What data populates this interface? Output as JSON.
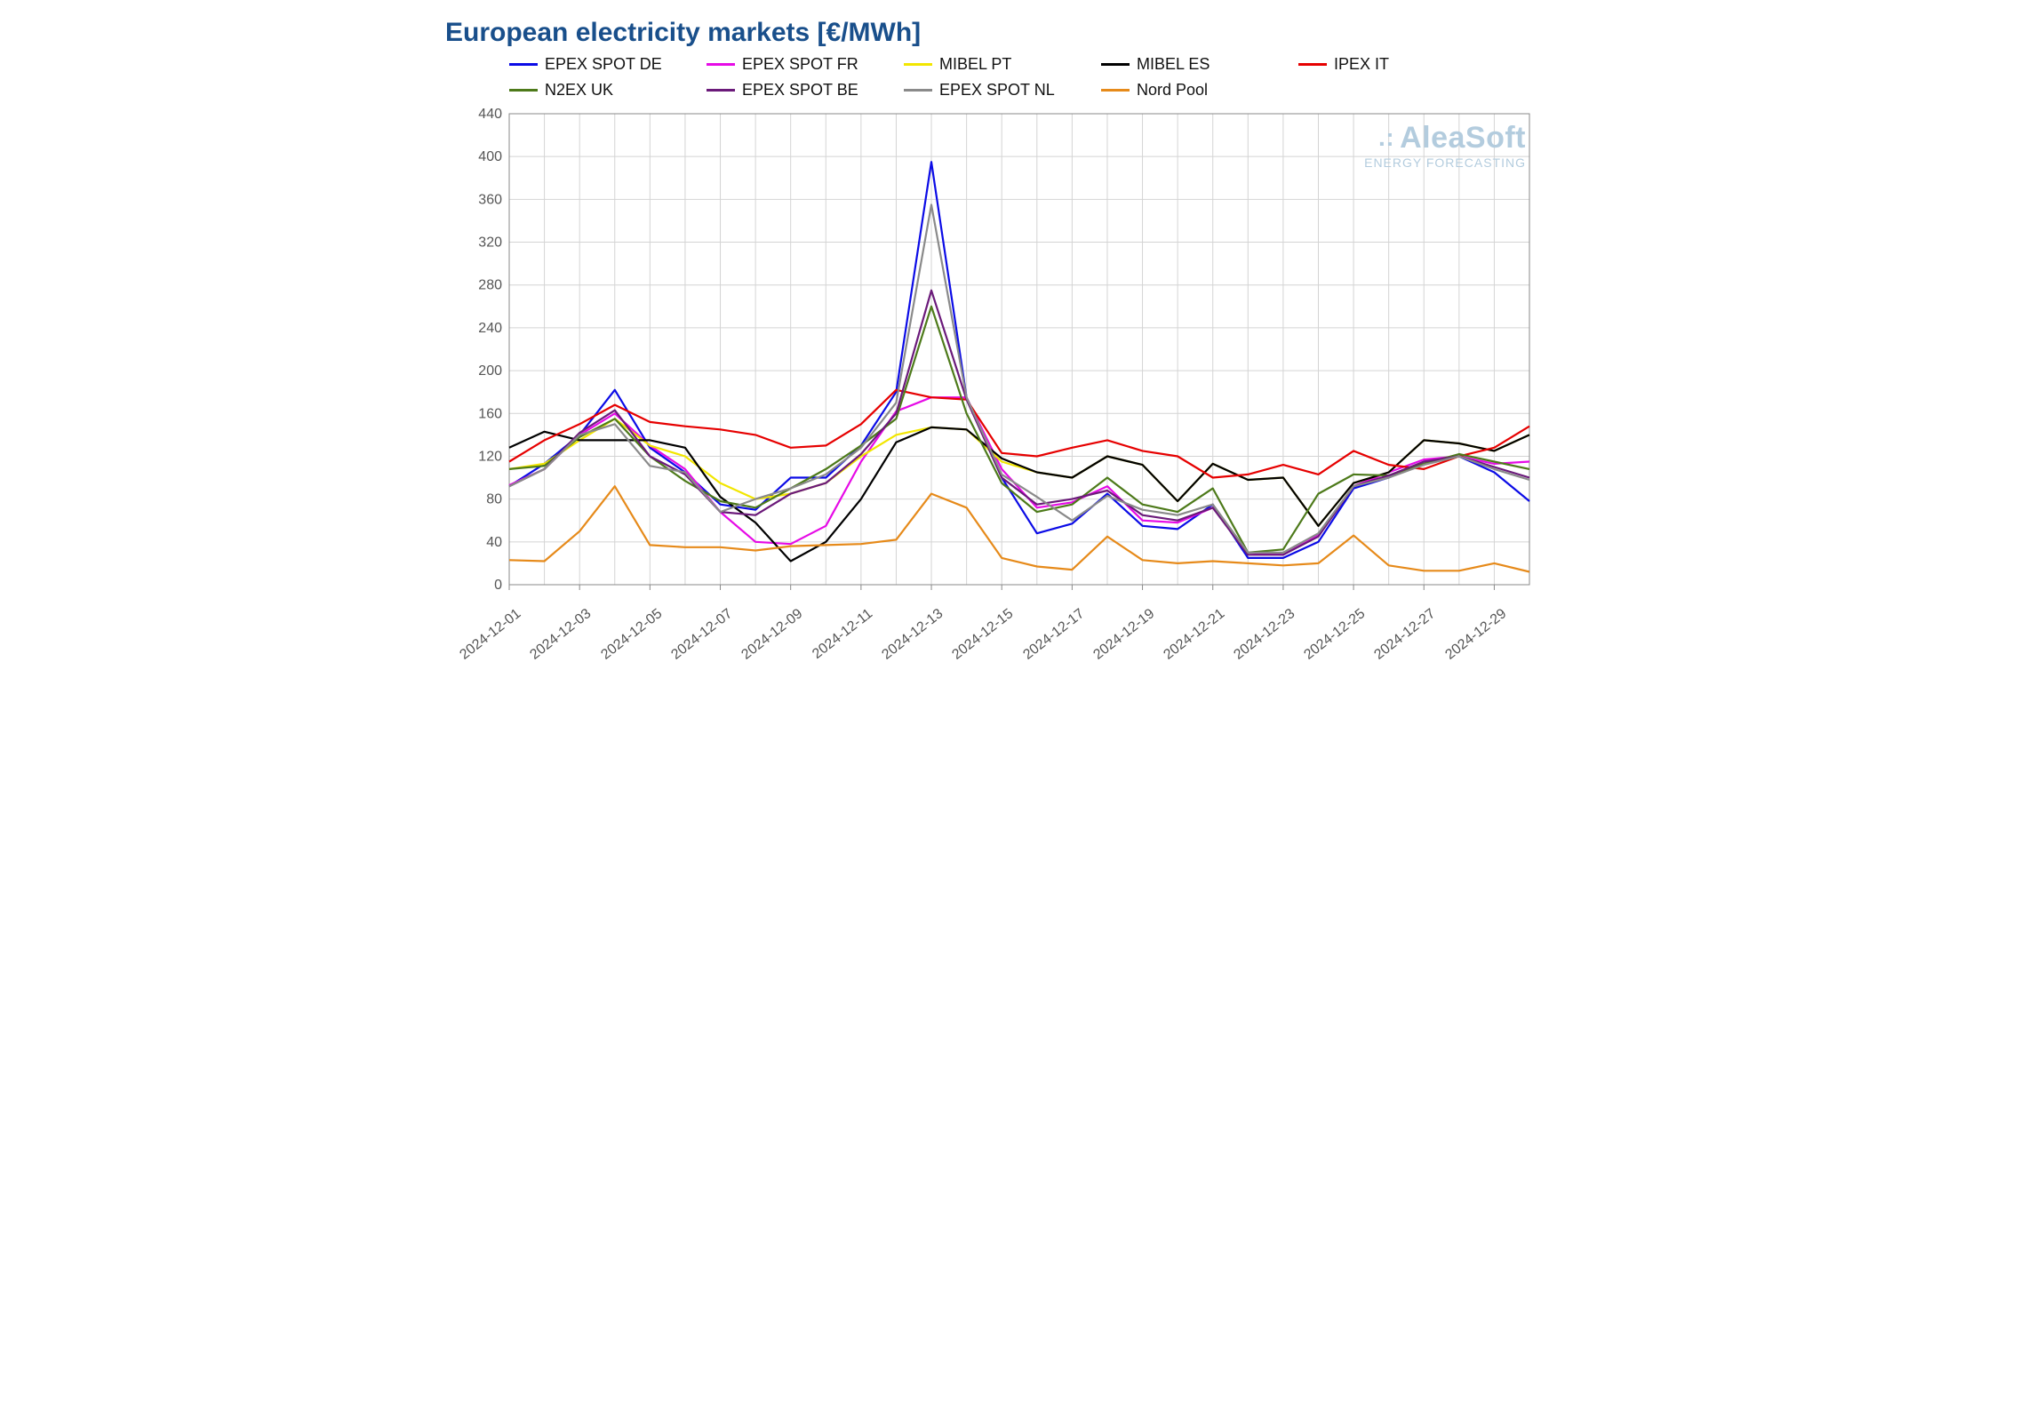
{
  "title": "European electricity markets [€/MWh]",
  "watermark": {
    "main": "AleaSoft",
    "sub": "ENERGY FORECASTING"
  },
  "chart": {
    "type": "line",
    "background_color": "#ffffff",
    "grid_color": "#d4d4d4",
    "axis_color": "#8a8a8a",
    "title_fontsize": 30,
    "title_color": "#194f8b",
    "legend_fontsize": 18,
    "axis_label_fontsize": 16,
    "line_width": 2.2,
    "ylim": [
      0,
      440
    ],
    "ytick_step": 40,
    "yticks": [
      0,
      40,
      80,
      120,
      160,
      200,
      240,
      280,
      320,
      360,
      400,
      440
    ],
    "x_dates": [
      "2024-12-01",
      "2024-12-02",
      "2024-12-03",
      "2024-12-04",
      "2024-12-05",
      "2024-12-06",
      "2024-12-07",
      "2024-12-08",
      "2024-12-09",
      "2024-12-10",
      "2024-12-11",
      "2024-12-12",
      "2024-12-13",
      "2024-12-14",
      "2024-12-15",
      "2024-12-16",
      "2024-12-17",
      "2024-12-18",
      "2024-12-19",
      "2024-12-20",
      "2024-12-21",
      "2024-12-22",
      "2024-12-23",
      "2024-12-24",
      "2024-12-25",
      "2024-12-26",
      "2024-12-27",
      "2024-12-28",
      "2024-12-29",
      "2024-12-30"
    ],
    "x_tick_indices": [
      0,
      2,
      4,
      6,
      8,
      10,
      12,
      14,
      16,
      18,
      20,
      22,
      24,
      26,
      28
    ],
    "series": [
      {
        "name": "EPEX SPOT DE",
        "color": "#0b0be6",
        "values": [
          92,
          113,
          140,
          182,
          128,
          105,
          75,
          70,
          100,
          100,
          130,
          180,
          395,
          175,
          100,
          48,
          57,
          85,
          55,
          52,
          75,
          25,
          25,
          40,
          90,
          100,
          115,
          120,
          105,
          78
        ]
      },
      {
        "name": "EPEX SPOT FR",
        "color": "#e60be6",
        "values": [
          93,
          108,
          140,
          160,
          130,
          108,
          68,
          40,
          38,
          55,
          115,
          162,
          175,
          175,
          108,
          72,
          77,
          92,
          60,
          58,
          72,
          30,
          28,
          47,
          92,
          105,
          117,
          120,
          113,
          115
        ]
      },
      {
        "name": "MIBEL PT",
        "color": "#f2e600",
        "values": [
          108,
          113,
          135,
          155,
          130,
          120,
          95,
          80,
          85,
          95,
          120,
          140,
          147,
          145,
          115,
          105,
          100,
          120,
          112,
          78,
          113,
          98,
          100,
          55,
          95,
          105,
          135,
          132,
          125,
          140
        ]
      },
      {
        "name": "MIBEL ES",
        "color": "#000000",
        "values": [
          128,
          143,
          135,
          135,
          135,
          128,
          82,
          58,
          22,
          40,
          80,
          133,
          147,
          145,
          118,
          105,
          100,
          120,
          112,
          78,
          113,
          98,
          100,
          55,
          95,
          105,
          135,
          132,
          125,
          140
        ]
      },
      {
        "name": "IPEX IT",
        "color": "#e60000",
        "values": [
          115,
          135,
          150,
          168,
          152,
          148,
          145,
          140,
          128,
          130,
          150,
          182,
          175,
          173,
          123,
          120,
          128,
          135,
          125,
          120,
          100,
          103,
          112,
          103,
          125,
          112,
          108,
          120,
          128,
          148
        ]
      },
      {
        "name": "N2EX UK",
        "color": "#4d7a1a",
        "values": [
          108,
          111,
          138,
          155,
          120,
          97,
          78,
          72,
          90,
          108,
          130,
          155,
          260,
          160,
          95,
          68,
          75,
          100,
          75,
          68,
          90,
          30,
          33,
          85,
          103,
          102,
          113,
          122,
          115,
          108
        ]
      },
      {
        "name": "EPEX SPOT BE",
        "color": "#6b1a7a",
        "values": [
          92,
          108,
          142,
          163,
          120,
          103,
          68,
          65,
          85,
          95,
          122,
          160,
          275,
          173,
          100,
          75,
          80,
          88,
          65,
          60,
          72,
          28,
          28,
          45,
          92,
          102,
          115,
          120,
          110,
          100
        ]
      },
      {
        "name": "EPEX SPOT NL",
        "color": "#8a8a8a",
        "values": [
          92,
          108,
          140,
          150,
          111,
          105,
          68,
          80,
          90,
          103,
          128,
          170,
          355,
          175,
          103,
          82,
          60,
          83,
          70,
          65,
          75,
          30,
          30,
          48,
          92,
          100,
          112,
          120,
          108,
          98
        ]
      },
      {
        "name": "Nord Pool",
        "color": "#e68a1a",
        "values": [
          23,
          22,
          50,
          92,
          37,
          35,
          35,
          32,
          36,
          37,
          38,
          42,
          85,
          72,
          25,
          17,
          14,
          45,
          23,
          20,
          22,
          20,
          18,
          20,
          46,
          18,
          13,
          13,
          20,
          12
        ]
      }
    ]
  }
}
